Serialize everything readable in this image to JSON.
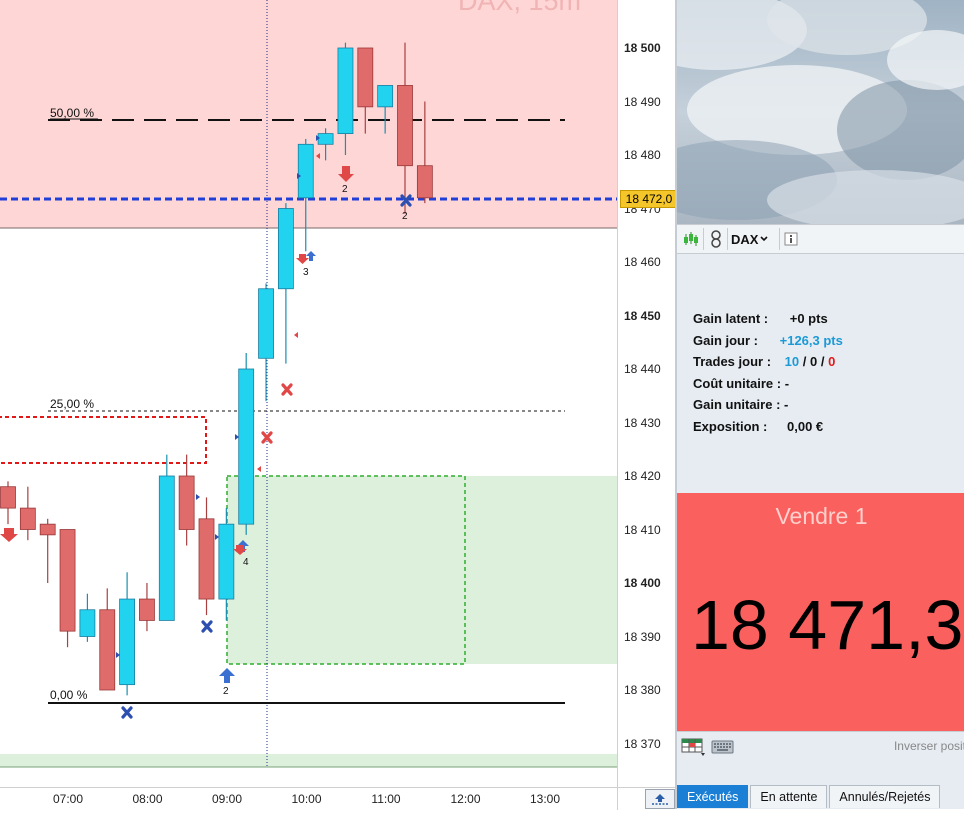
{
  "chart": {
    "title": "DAX, 15m",
    "price_axis": [
      {
        "label": "18 500",
        "value": 18500,
        "bold": true
      },
      {
        "label": "18 490",
        "value": 18490,
        "bold": false
      },
      {
        "label": "18 480",
        "value": 18480,
        "bold": false
      },
      {
        "label": "18 470",
        "value": 18470,
        "bold": false
      },
      {
        "label": "18 460",
        "value": 18460,
        "bold": false
      },
      {
        "label": "18 450",
        "value": 18450,
        "bold": true
      },
      {
        "label": "18 440",
        "value": 18440,
        "bold": false
      },
      {
        "label": "18 430",
        "value": 18430,
        "bold": false
      },
      {
        "label": "18 420",
        "value": 18420,
        "bold": false
      },
      {
        "label": "18 410",
        "value": 18410,
        "bold": false
      },
      {
        "label": "18 400",
        "value": 18400,
        "bold": true
      },
      {
        "label": "18 390",
        "value": 18390,
        "bold": false
      },
      {
        "label": "18 380",
        "value": 18380,
        "bold": false
      },
      {
        "label": "18 370",
        "value": 18370,
        "bold": false
      }
    ],
    "current_price_label": "18 472,0",
    "current_price": 18472,
    "time_axis": [
      "07:00",
      "08:00",
      "09:00",
      "10:00",
      "11:00",
      "12:00",
      "13:00"
    ],
    "fib_levels": [
      {
        "label": "50,00 %",
        "value": 18486.5,
        "style": "dashed"
      },
      {
        "label": "25,00 %",
        "value": 18432,
        "style": "dotted"
      },
      {
        "label": "0,00 %",
        "value": 18377.5,
        "style": "solid"
      }
    ],
    "trade_counts": [
      "2",
      "2",
      "3",
      "4",
      "2"
    ],
    "colors": {
      "bull": "#22d3f0",
      "bear": "#df6b6b",
      "resistance_zone": "#ffd6d6",
      "support_zone": "#dcf0dc",
      "current_price_line": "#1f3fd8"
    }
  },
  "chart_data": {
    "type": "candlestick",
    "title": "DAX, 15m",
    "ylim": [
      18366,
      18509
    ],
    "candles": [
      {
        "o": 18418,
        "h": 18419,
        "l": 18411,
        "c": 18414
      },
      {
        "o": 18414,
        "h": 18418,
        "l": 18408,
        "c": 18410
      },
      {
        "o": 18411,
        "h": 18412,
        "l": 18400,
        "c": 18409
      },
      {
        "o": 18410,
        "h": 18410,
        "l": 18388,
        "c": 18391
      },
      {
        "o": 18390,
        "h": 18398,
        "l": 18389,
        "c": 18395
      },
      {
        "o": 18395,
        "h": 18399,
        "l": 18380,
        "c": 18380
      },
      {
        "o": 18381,
        "h": 18402,
        "l": 18379,
        "c": 18397
      },
      {
        "o": 18397,
        "h": 18400,
        "l": 18391,
        "c": 18393
      },
      {
        "o": 18393,
        "h": 18424,
        "l": 18393,
        "c": 18420
      },
      {
        "o": 18420,
        "h": 18424,
        "l": 18407,
        "c": 18410
      },
      {
        "o": 18412,
        "h": 18416,
        "l": 18394,
        "c": 18397
      },
      {
        "o": 18397,
        "h": 18414,
        "l": 18393,
        "c": 18411
      },
      {
        "o": 18411,
        "h": 18443,
        "l": 18409,
        "c": 18440
      },
      {
        "o": 18442,
        "h": 18456,
        "l": 18434,
        "c": 18455
      },
      {
        "o": 18455,
        "h": 18471,
        "l": 18441,
        "c": 18470
      },
      {
        "o": 18472,
        "h": 18483,
        "l": 18462,
        "c": 18482
      },
      {
        "o": 18482,
        "h": 18485,
        "l": 18479,
        "c": 18484
      },
      {
        "o": 18484,
        "h": 18501,
        "l": 18480,
        "c": 18500
      },
      {
        "o": 18500,
        "h": 18500,
        "l": 18484,
        "c": 18489
      },
      {
        "o": 18489,
        "h": 18493,
        "l": 18484,
        "c": 18493
      },
      {
        "o": 18493,
        "h": 18501,
        "l": 18469,
        "c": 18478
      },
      {
        "o": 18478,
        "h": 18490,
        "l": 18471,
        "c": 18472
      }
    ]
  },
  "panel": {
    "instrument": "DAX",
    "stats": {
      "gain_latent_label": "Gain latent :",
      "gain_latent_value": "+0 pts",
      "gain_jour_label": "Gain jour :",
      "gain_jour_value": "+126,3 pts",
      "trades_label": "Trades jour :",
      "trades_won": "10",
      "trades_flat": "0",
      "trades_lost": "0",
      "cost_label": "Coût unitaire :",
      "cost_value": "-",
      "unit_gain_label": "Gain unitaire :",
      "unit_gain_value": "-",
      "exposure_label": "Exposition :",
      "exposure_value": "0,00 €"
    },
    "sell": {
      "label": "Vendre 1",
      "price": "18 471,3"
    },
    "invert_label": "Inverser posit",
    "tabs": [
      "Exécutés",
      "En attente",
      "Annulés/Rejetés"
    ],
    "active_tab": 0,
    "colors": {
      "sell_bg": "#f9605e",
      "tab_active": "#1c7fd6",
      "positive": "#1c9ad6",
      "negative": "#e21a1a"
    }
  }
}
